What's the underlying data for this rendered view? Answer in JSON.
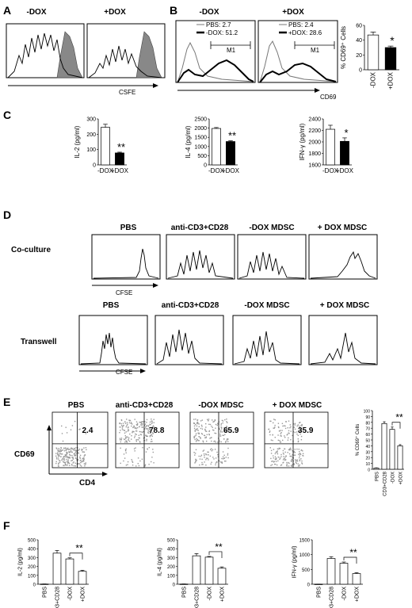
{
  "panels": {
    "A": {
      "label": "A",
      "headers": [
        "-DOX",
        "+DOX"
      ],
      "xlabel": "CSFE"
    },
    "B": {
      "label": "B",
      "headers": [
        "-DOX",
        "+DOX"
      ],
      "xlabel": "CD69",
      "legend_left": [
        "PBS: 2.7",
        "-DOX: 51.2"
      ],
      "legend_right": [
        "PBS: 2.4",
        "+DOX: 28.6"
      ],
      "gate_label": "M1",
      "bar_ylabel": "% CD69⁺ Cells",
      "significance": "*"
    },
    "C": {
      "label": "C",
      "significance": [
        "**",
        "**",
        "*"
      ]
    },
    "D": {
      "label": "D",
      "column_headers": [
        "PBS",
        "anti-CD3+CD28",
        "-DOX MDSC",
        "+ DOX MDSC"
      ],
      "rows": [
        "Co-culture",
        "Transwell"
      ],
      "xlabel": "CFSE"
    },
    "E": {
      "label": "E",
      "column_headers": [
        "PBS",
        "anti-CD3+CD28",
        "-DOX MDSC",
        "+ DOX MDSC"
      ],
      "quadrant_values": [
        "2.4",
        "78.8",
        "65.9",
        "35.9"
      ],
      "ylabel": "CD69",
      "xlabel": "CD4",
      "bar_ylabel": "% CD69⁺ Cells",
      "significance": "**"
    },
    "F": {
      "label": "F",
      "significance": [
        "**",
        "**",
        "**"
      ]
    }
  },
  "chart_data": [
    {
      "id": "B-bar",
      "type": "bar",
      "categories": [
        "-DOX",
        "+DOX"
      ],
      "values": [
        47,
        30
      ],
      "errors": [
        4,
        2
      ],
      "ylabel": "% CD69⁺ Cells",
      "ylim": [
        0,
        60
      ],
      "yticks": [
        0,
        20,
        40,
        60
      ],
      "fills": [
        "#ffffff",
        "#000000"
      ]
    },
    {
      "id": "C-IL2",
      "type": "bar",
      "categories": [
        "-DOX",
        "+DOX"
      ],
      "values": [
        245,
        78
      ],
      "errors": [
        20,
        5
      ],
      "ylabel": "IL-2 (pg/ml)",
      "ylim": [
        0,
        300
      ],
      "yticks": [
        0,
        100,
        200,
        300
      ],
      "fills": [
        "#ffffff",
        "#000000"
      ]
    },
    {
      "id": "C-IL4",
      "type": "bar",
      "categories": [
        "-DOX",
        "+DOX"
      ],
      "values": [
        1980,
        1270
      ],
      "errors": [
        50,
        40
      ],
      "ylabel": "IL-4 (pg/ml)",
      "ylim": [
        0,
        2500
      ],
      "yticks": [
        0,
        500,
        1000,
        1500,
        2000,
        2500
      ],
      "fills": [
        "#ffffff",
        "#000000"
      ]
    },
    {
      "id": "C-IFN",
      "type": "bar",
      "categories": [
        "-DOX",
        "+DOX"
      ],
      "values": [
        2220,
        2010
      ],
      "errors": [
        70,
        60
      ],
      "ylabel": "IFN-γ (pg/ml)",
      "ylim": [
        1600,
        2400
      ],
      "yticks": [
        1600,
        1800,
        2000,
        2200,
        2400
      ],
      "fills": [
        "#ffffff",
        "#000000"
      ]
    },
    {
      "id": "E-bar",
      "type": "bar",
      "categories": [
        "PBS",
        "CD3+CD28",
        "-DOX",
        "+DOX"
      ],
      "values": [
        2,
        78,
        68,
        40
      ],
      "errors": [
        0.5,
        3,
        4,
        2
      ],
      "ylabel": "% CD69⁺ Cells",
      "ylim": [
        0,
        100
      ],
      "yticks": [
        0,
        10,
        20,
        30,
        40,
        50,
        60,
        70,
        80,
        90,
        100
      ],
      "fills": [
        "#ffffff",
        "#ffffff",
        "#ffffff",
        "#ffffff"
      ]
    },
    {
      "id": "F-IL2",
      "type": "bar",
      "categories": [
        "PBS",
        "CD3+CD28",
        "-DOX",
        "+DOX"
      ],
      "values": [
        2,
        350,
        285,
        145
      ],
      "errors": [
        1,
        30,
        12,
        12
      ],
      "ylabel": "IL-2 (pg/ml)",
      "ylim": [
        0,
        500
      ],
      "yticks": [
        0,
        100,
        200,
        300,
        400,
        500
      ],
      "fills": [
        "#ffffff",
        "#ffffff",
        "#ffffff",
        "#ffffff"
      ]
    },
    {
      "id": "F-IL4",
      "type": "bar",
      "categories": [
        "PBS",
        "CD3+CD28",
        "-DOX",
        "+DOX"
      ],
      "values": [
        2,
        320,
        305,
        180
      ],
      "errors": [
        1,
        25,
        8,
        15
      ],
      "ylabel": "IL-4 (pg/ml)",
      "ylim": [
        0,
        500
      ],
      "yticks": [
        0,
        100,
        200,
        300,
        400,
        500
      ],
      "fills": [
        "#ffffff",
        "#ffffff",
        "#ffffff",
        "#ffffff"
      ]
    },
    {
      "id": "F-IFN",
      "type": "bar",
      "categories": [
        "PBS",
        "CD3+CD28",
        "-DOX",
        "+DOX"
      ],
      "values": [
        3,
        870,
        710,
        360
      ],
      "errors": [
        2,
        60,
        40,
        30
      ],
      "ylabel": "IFN-γ (pg/ml)",
      "ylim": [
        0,
        1500
      ],
      "yticks": [
        0,
        500,
        1000,
        1500
      ],
      "fills": [
        "#ffffff",
        "#ffffff",
        "#ffffff",
        "#ffffff"
      ]
    }
  ]
}
